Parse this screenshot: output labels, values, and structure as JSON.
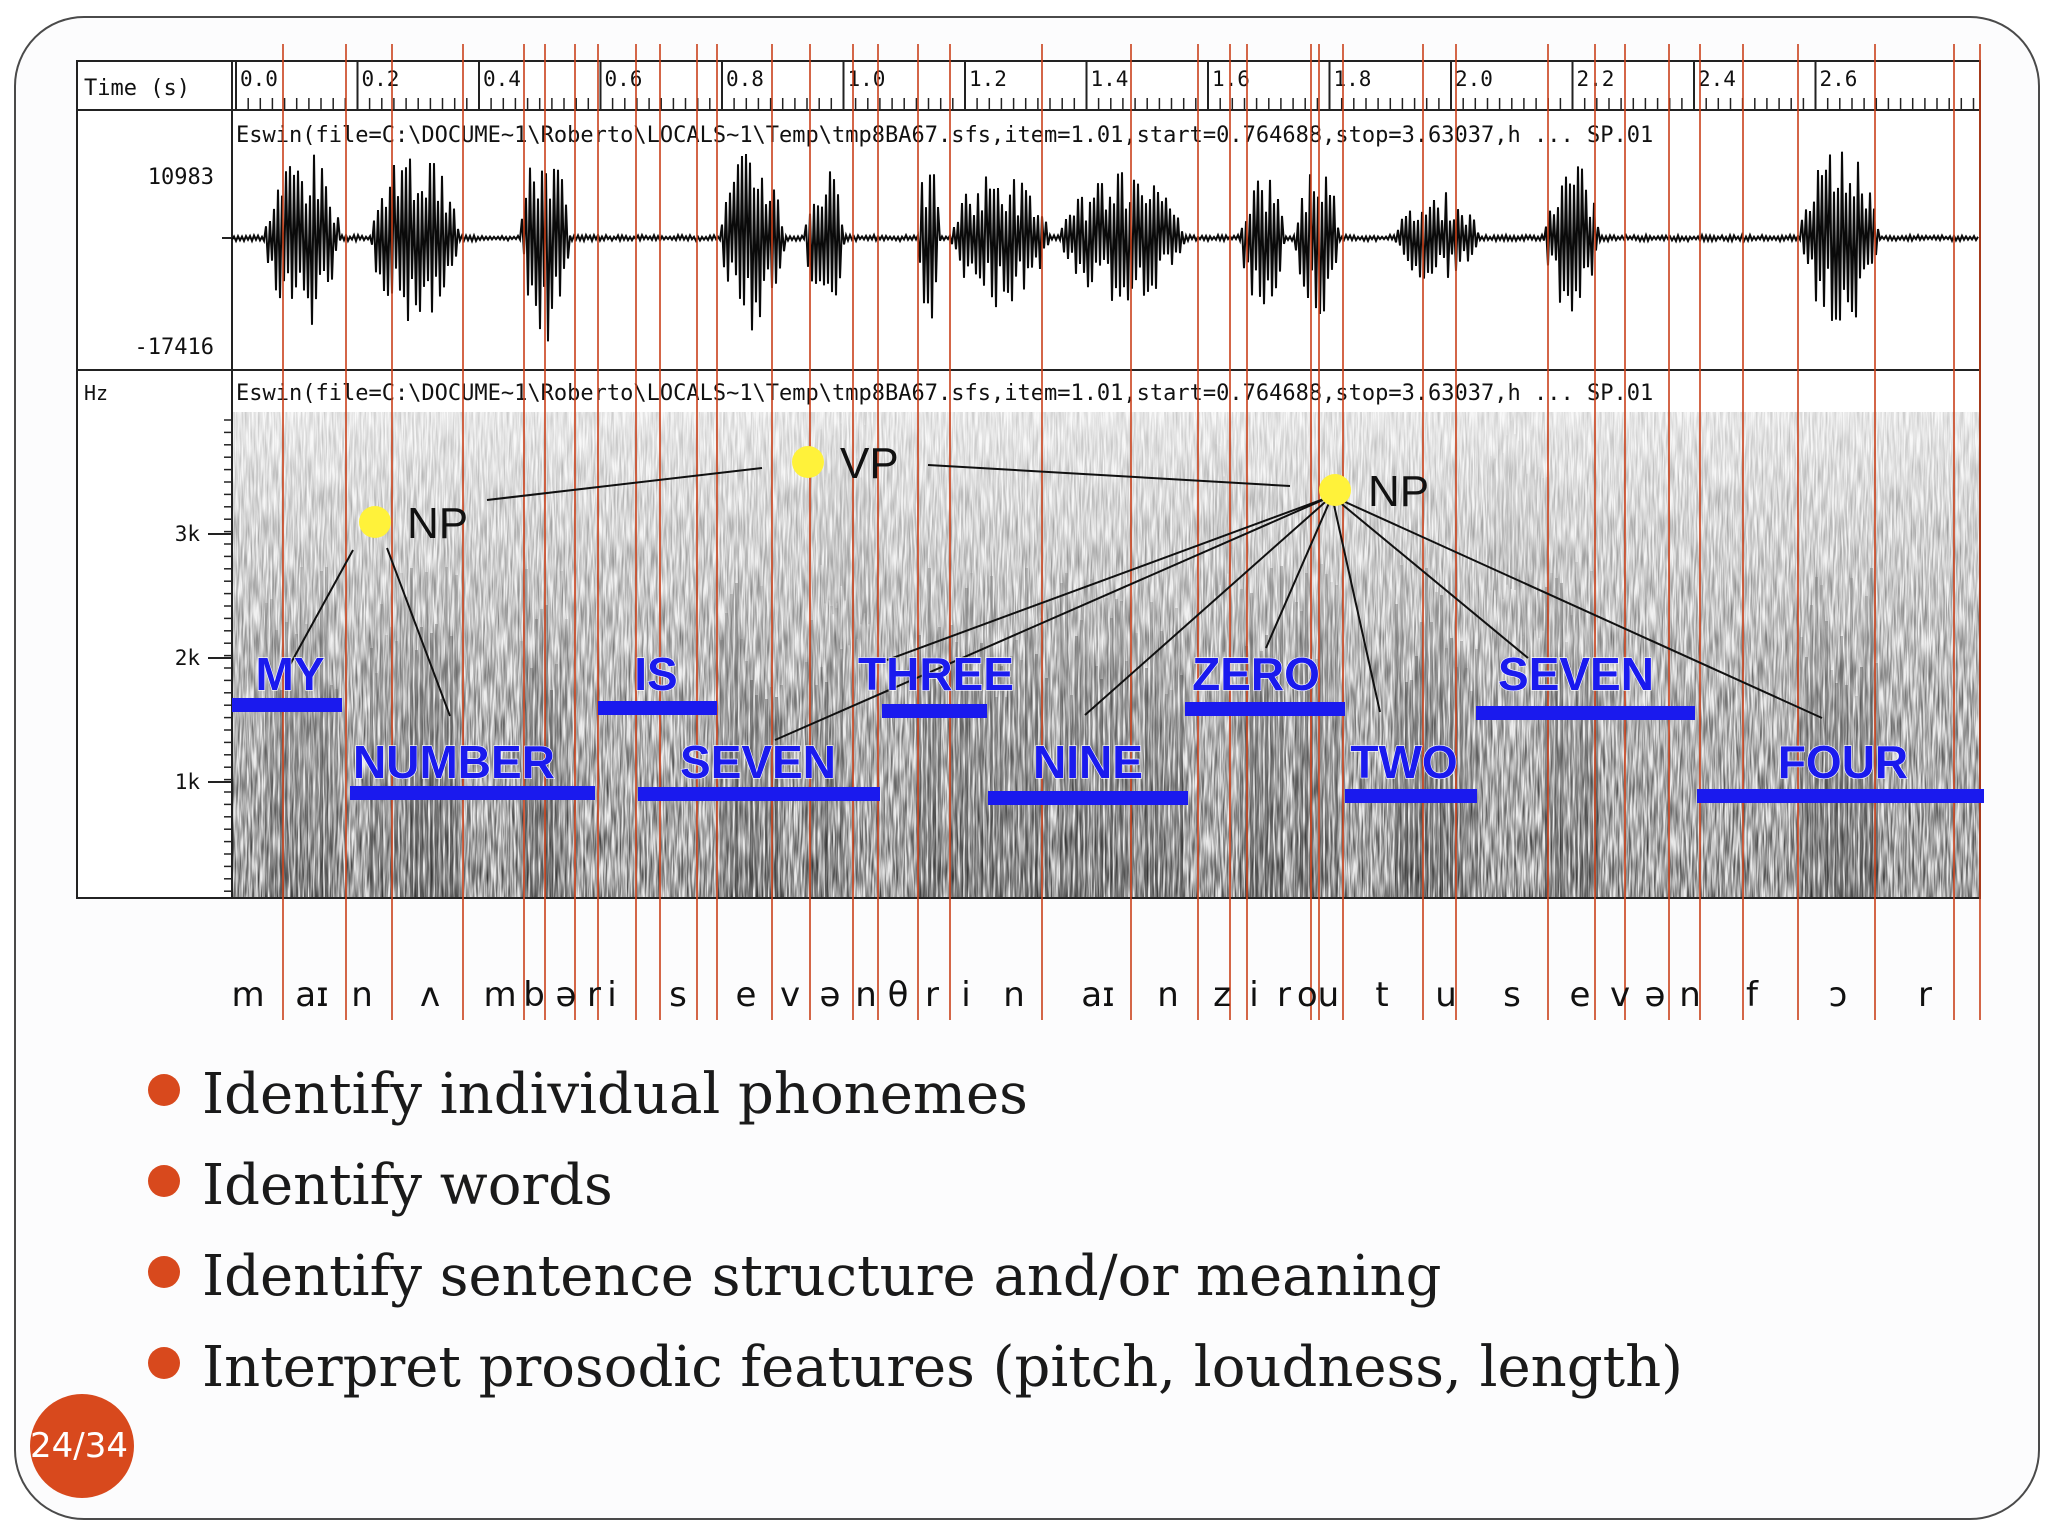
{
  "figure": {
    "time_axis_label": "Time (s)",
    "time_ticks": [
      "0.0",
      "0.2",
      "0.4",
      "0.6",
      "0.8",
      "1.0",
      "1.2",
      "1.4",
      "1.6",
      "1.8",
      "2.0",
      "2.2",
      "2.4",
      "2.6"
    ],
    "waveform_header": "Eswin(file=C:\\DOCUME~1\\Roberto\\LOCALS~1\\Temp\\tmp8BA67.sfs,item=1.01,start=0.764688,stop=3.63037,h ... SP.01",
    "spectrogram_header": "Eswin(file=C:\\DOCUME~1\\Roberto\\LOCALS~1\\Temp\\tmp8BA67.sfs,item=1.01,start=0.764688,stop=3.63037,h ... SP.01",
    "amplitude_max": "10983",
    "amplitude_min": "-17416",
    "freq_unit": "Hz",
    "freq_ticks": [
      "3k",
      "2k",
      "1k"
    ],
    "tree_labels": {
      "np_left": "NP",
      "vp": "VP",
      "np_right": "NP"
    },
    "words": [
      "MY",
      "NUMBER",
      "IS",
      "SEVEN",
      "THREE",
      "NINE",
      "ZERO",
      "TWO",
      "SEVEN",
      "FOUR"
    ],
    "phonemes": [
      "m",
      "aɪ",
      "n",
      "ʌ",
      "m",
      "b",
      "ə",
      "r",
      "i",
      "s",
      "e",
      "v",
      "ə",
      "n",
      "θ",
      "r",
      "i",
      "n",
      "aɪ",
      "n",
      "z",
      "i",
      "r",
      "ou",
      "t",
      "u",
      "s",
      "e",
      "v",
      "ə",
      "n",
      "f",
      "ɔ",
      "r"
    ],
    "colors": {
      "word_blue": "#1a1aee",
      "node_yellow": "#fff23a",
      "boundary_line": "#c9401a"
    }
  },
  "bullets": [
    "Identify individual phonemes",
    "Identify words",
    "Identify sentence structure and/or meaning",
    "Interpret prosodic features (pitch, loudness, length)"
  ],
  "page_number": "24/34",
  "colors": {
    "accent": "#d8491d",
    "frame": "#4a4a4a"
  }
}
